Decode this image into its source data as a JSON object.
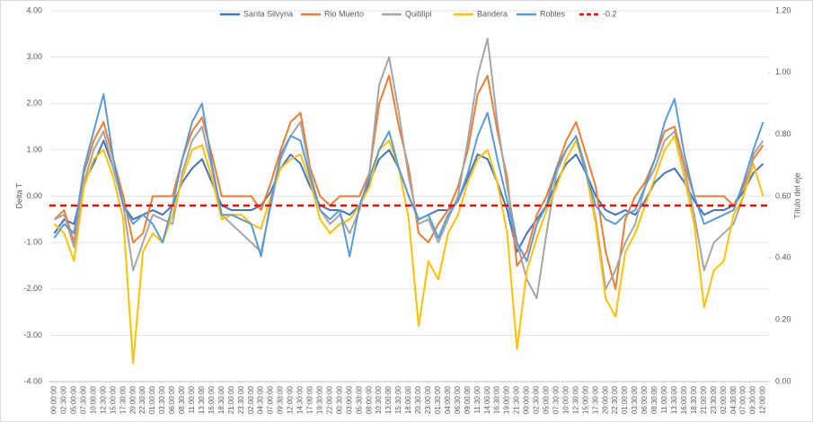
{
  "chart_data": {
    "type": "line",
    "categories": [
      "00:00:00",
      "02:30:00",
      "05:00:00",
      "07:30:00",
      "10:00:00",
      "12:30:00",
      "15:00:00",
      "17:30:00",
      "20:00:00",
      "22:30:00",
      "01:00:00",
      "03:30:00",
      "06:00:00",
      "08:30:00",
      "11:00:00",
      "13:30:00",
      "16:00:00",
      "18:30:00",
      "21:00:00",
      "23:30:00",
      "02:00:00",
      "04:30:00",
      "07:00:00",
      "09:30:00",
      "12:00:00",
      "14:30:00",
      "17:00:00",
      "19:30:00",
      "22:00:00",
      "00:30:00",
      "03:00:00",
      "05:30:00",
      "08:00:00",
      "10:30:00",
      "13:00:00",
      "15:30:00",
      "18:00:00",
      "20:30:00",
      "23:00:00",
      "01:30:00",
      "04:00:00",
      "06:30:00",
      "09:00:00",
      "11:30:00",
      "14:00:00",
      "16:30:00",
      "19:00:00",
      "21:30:00",
      "00:00:00",
      "02:30:00",
      "05:00:00",
      "07:30:00",
      "10:00:00",
      "12:30:00",
      "15:00:00",
      "17:30:00",
      "20:00:00",
      "22:30:00",
      "01:00:00",
      "03:30:00",
      "06:00:00",
      "08:30:00",
      "11:00:00",
      "13:30:00",
      "16:00:00",
      "18:30:00",
      "21:00:00",
      "23:30:00",
      "02:00:00",
      "04:30:00",
      "07:00:00",
      "09:30:00",
      "12:00:00"
    ],
    "series": [
      {
        "name": "Santa Silvyna",
        "color": "#4472c4",
        "values": [
          -0.8,
          -0.5,
          -0.6,
          0.3,
          0.7,
          1.2,
          0.6,
          -0.2,
          -0.5,
          -0.4,
          -0.3,
          -0.4,
          -0.2,
          0.3,
          0.6,
          0.8,
          0.3,
          -0.2,
          -0.3,
          -0.3,
          -0.3,
          -0.2,
          0.1,
          0.6,
          0.9,
          0.7,
          0.2,
          -0.2,
          -0.3,
          -0.3,
          -0.4,
          -0.2,
          0.3,
          0.8,
          1.0,
          0.6,
          0.0,
          -0.5,
          -0.4,
          -0.3,
          -0.3,
          -0.1,
          0.4,
          0.9,
          0.8,
          0.3,
          -0.3,
          -1.2,
          -0.8,
          -0.5,
          -0.2,
          0.3,
          0.7,
          0.9,
          0.5,
          0.0,
          -0.3,
          -0.4,
          -0.3,
          -0.4,
          -0.1,
          0.3,
          0.5,
          0.6,
          0.3,
          -0.1,
          -0.4,
          -0.3,
          -0.3,
          -0.2,
          0.1,
          0.5,
          0.7
        ]
      },
      {
        "name": "Rio Muerto",
        "color": "#ed7d31",
        "values": [
          -0.5,
          -0.3,
          -1.0,
          0.5,
          1.2,
          1.6,
          0.8,
          0.0,
          -1.0,
          -0.8,
          0.0,
          0.0,
          0.0,
          0.8,
          1.4,
          1.7,
          0.9,
          0.0,
          0.0,
          0.0,
          0.0,
          -0.3,
          0.3,
          1.0,
          1.6,
          1.8,
          0.6,
          0.0,
          -0.2,
          0.0,
          0.0,
          0.0,
          0.5,
          2.0,
          2.6,
          1.5,
          0.6,
          -0.8,
          -1.0,
          -0.6,
          -0.3,
          0.2,
          1.0,
          2.2,
          2.6,
          1.4,
          0.4,
          -1.5,
          -1.2,
          -0.4,
          0.0,
          0.6,
          1.2,
          1.6,
          0.9,
          0.2,
          -1.2,
          -2.0,
          -0.5,
          0.0,
          0.3,
          0.8,
          1.4,
          1.5,
          0.7,
          0.0,
          0.0,
          0.0,
          0.0,
          -0.2,
          0.2,
          0.8,
          1.1
        ]
      },
      {
        "name": "Quitilipi",
        "color": "#a5a5a5",
        "values": [
          -0.5,
          -0.4,
          -1.1,
          0.3,
          1.0,
          1.4,
          0.6,
          -0.2,
          -1.6,
          -1.0,
          -0.4,
          -0.5,
          -0.6,
          0.5,
          1.2,
          1.5,
          0.6,
          -0.4,
          -0.6,
          -0.8,
          -1.0,
          -1.2,
          -0.2,
          0.8,
          1.3,
          1.6,
          0.5,
          -0.3,
          -0.6,
          -0.4,
          -0.8,
          -0.3,
          0.5,
          2.4,
          3.0,
          1.8,
          0.4,
          -0.6,
          -0.5,
          -1.0,
          -0.5,
          0.0,
          1.2,
          2.6,
          3.4,
          1.6,
          0.2,
          -1.0,
          -1.8,
          -2.2,
          -0.8,
          0.5,
          1.0,
          1.3,
          0.6,
          -0.5,
          -2.0,
          -1.6,
          -1.0,
          -0.6,
          0.2,
          0.6,
          1.2,
          1.4,
          0.6,
          -0.4,
          -1.6,
          -1.0,
          -0.8,
          -0.6,
          0.0,
          0.9,
          1.2
        ]
      },
      {
        "name": "Bandera",
        "color": "#ffc000",
        "values": [
          -0.6,
          -0.8,
          -1.4,
          0.2,
          0.8,
          1.0,
          0.4,
          -0.5,
          -3.6,
          -1.2,
          -0.8,
          -1.0,
          -0.4,
          0.4,
          1.0,
          1.1,
          0.4,
          -0.5,
          -0.4,
          -0.4,
          -0.6,
          -0.7,
          0.0,
          0.6,
          0.8,
          0.9,
          0.3,
          -0.5,
          -0.8,
          -0.6,
          -0.5,
          -0.2,
          0.2,
          1.0,
          1.2,
          0.6,
          -0.5,
          -2.8,
          -1.4,
          -1.8,
          -0.8,
          -0.4,
          0.3,
          0.8,
          1.0,
          0.3,
          -0.8,
          -3.3,
          -1.6,
          -0.9,
          -0.3,
          0.2,
          0.8,
          1.2,
          0.5,
          -0.6,
          -2.2,
          -2.6,
          -1.2,
          -0.8,
          -0.2,
          0.4,
          1.0,
          1.3,
          0.4,
          -0.6,
          -2.4,
          -1.6,
          -1.4,
          -0.4,
          0.0,
          0.7,
          0.0
        ]
      },
      {
        "name": "Robles",
        "color": "#5b9bd5",
        "values": [
          -0.9,
          -0.6,
          -0.8,
          0.6,
          1.4,
          2.2,
          0.8,
          -0.2,
          -0.6,
          -0.4,
          -0.6,
          -1.0,
          -0.2,
          0.8,
          1.6,
          2.0,
          0.7,
          -0.4,
          -0.4,
          -0.5,
          -0.6,
          -1.3,
          -0.1,
          0.9,
          1.3,
          1.2,
          0.4,
          -0.3,
          -0.5,
          -0.3,
          -1.3,
          -0.2,
          0.4,
          1.0,
          1.4,
          0.6,
          0.0,
          -0.5,
          -0.4,
          -0.9,
          -0.4,
          -0.1,
          0.5,
          1.3,
          1.8,
          0.8,
          -0.1,
          -1.0,
          -1.4,
          -0.6,
          -0.2,
          0.6,
          1.0,
          1.3,
          0.5,
          -0.2,
          -0.5,
          -0.6,
          -0.4,
          -0.3,
          0.2,
          0.8,
          1.6,
          2.1,
          0.9,
          0.0,
          -0.6,
          -0.5,
          -0.4,
          -0.3,
          0.3,
          1.0,
          1.6
        ]
      }
    ],
    "reference_line": {
      "name": "-0.2",
      "value": -0.2,
      "color": "#ff0000"
    },
    "y_label": "Delta T",
    "y2_label": "Título del eje",
    "ylim": [
      -4,
      4
    ],
    "yticks": [
      {
        "value": -4,
        "label": "-4.00"
      },
      {
        "value": -3,
        "label": "-3.00"
      },
      {
        "value": -2,
        "label": "-2.00"
      },
      {
        "value": -1,
        "label": "-1.00"
      },
      {
        "value": 0,
        "label": "0.00"
      },
      {
        "value": 1,
        "label": "1.00"
      },
      {
        "value": 2,
        "label": "2.00"
      },
      {
        "value": 3,
        "label": "3.00"
      },
      {
        "value": 4,
        "label": "4.00"
      }
    ],
    "y2lim": [
      0,
      1.2
    ],
    "y2ticks": [
      {
        "value": 0,
        "label": "0.00"
      },
      {
        "value": 0.2,
        "label": "0.20"
      },
      {
        "value": 0.4,
        "label": "0.40"
      },
      {
        "value": 0.6,
        "label": "0.60"
      },
      {
        "value": 0.8,
        "label": "0.80"
      },
      {
        "value": 1.0,
        "label": "1.00"
      },
      {
        "value": 1.2,
        "label": "1.20"
      }
    ],
    "grid": true,
    "legend": "top"
  }
}
